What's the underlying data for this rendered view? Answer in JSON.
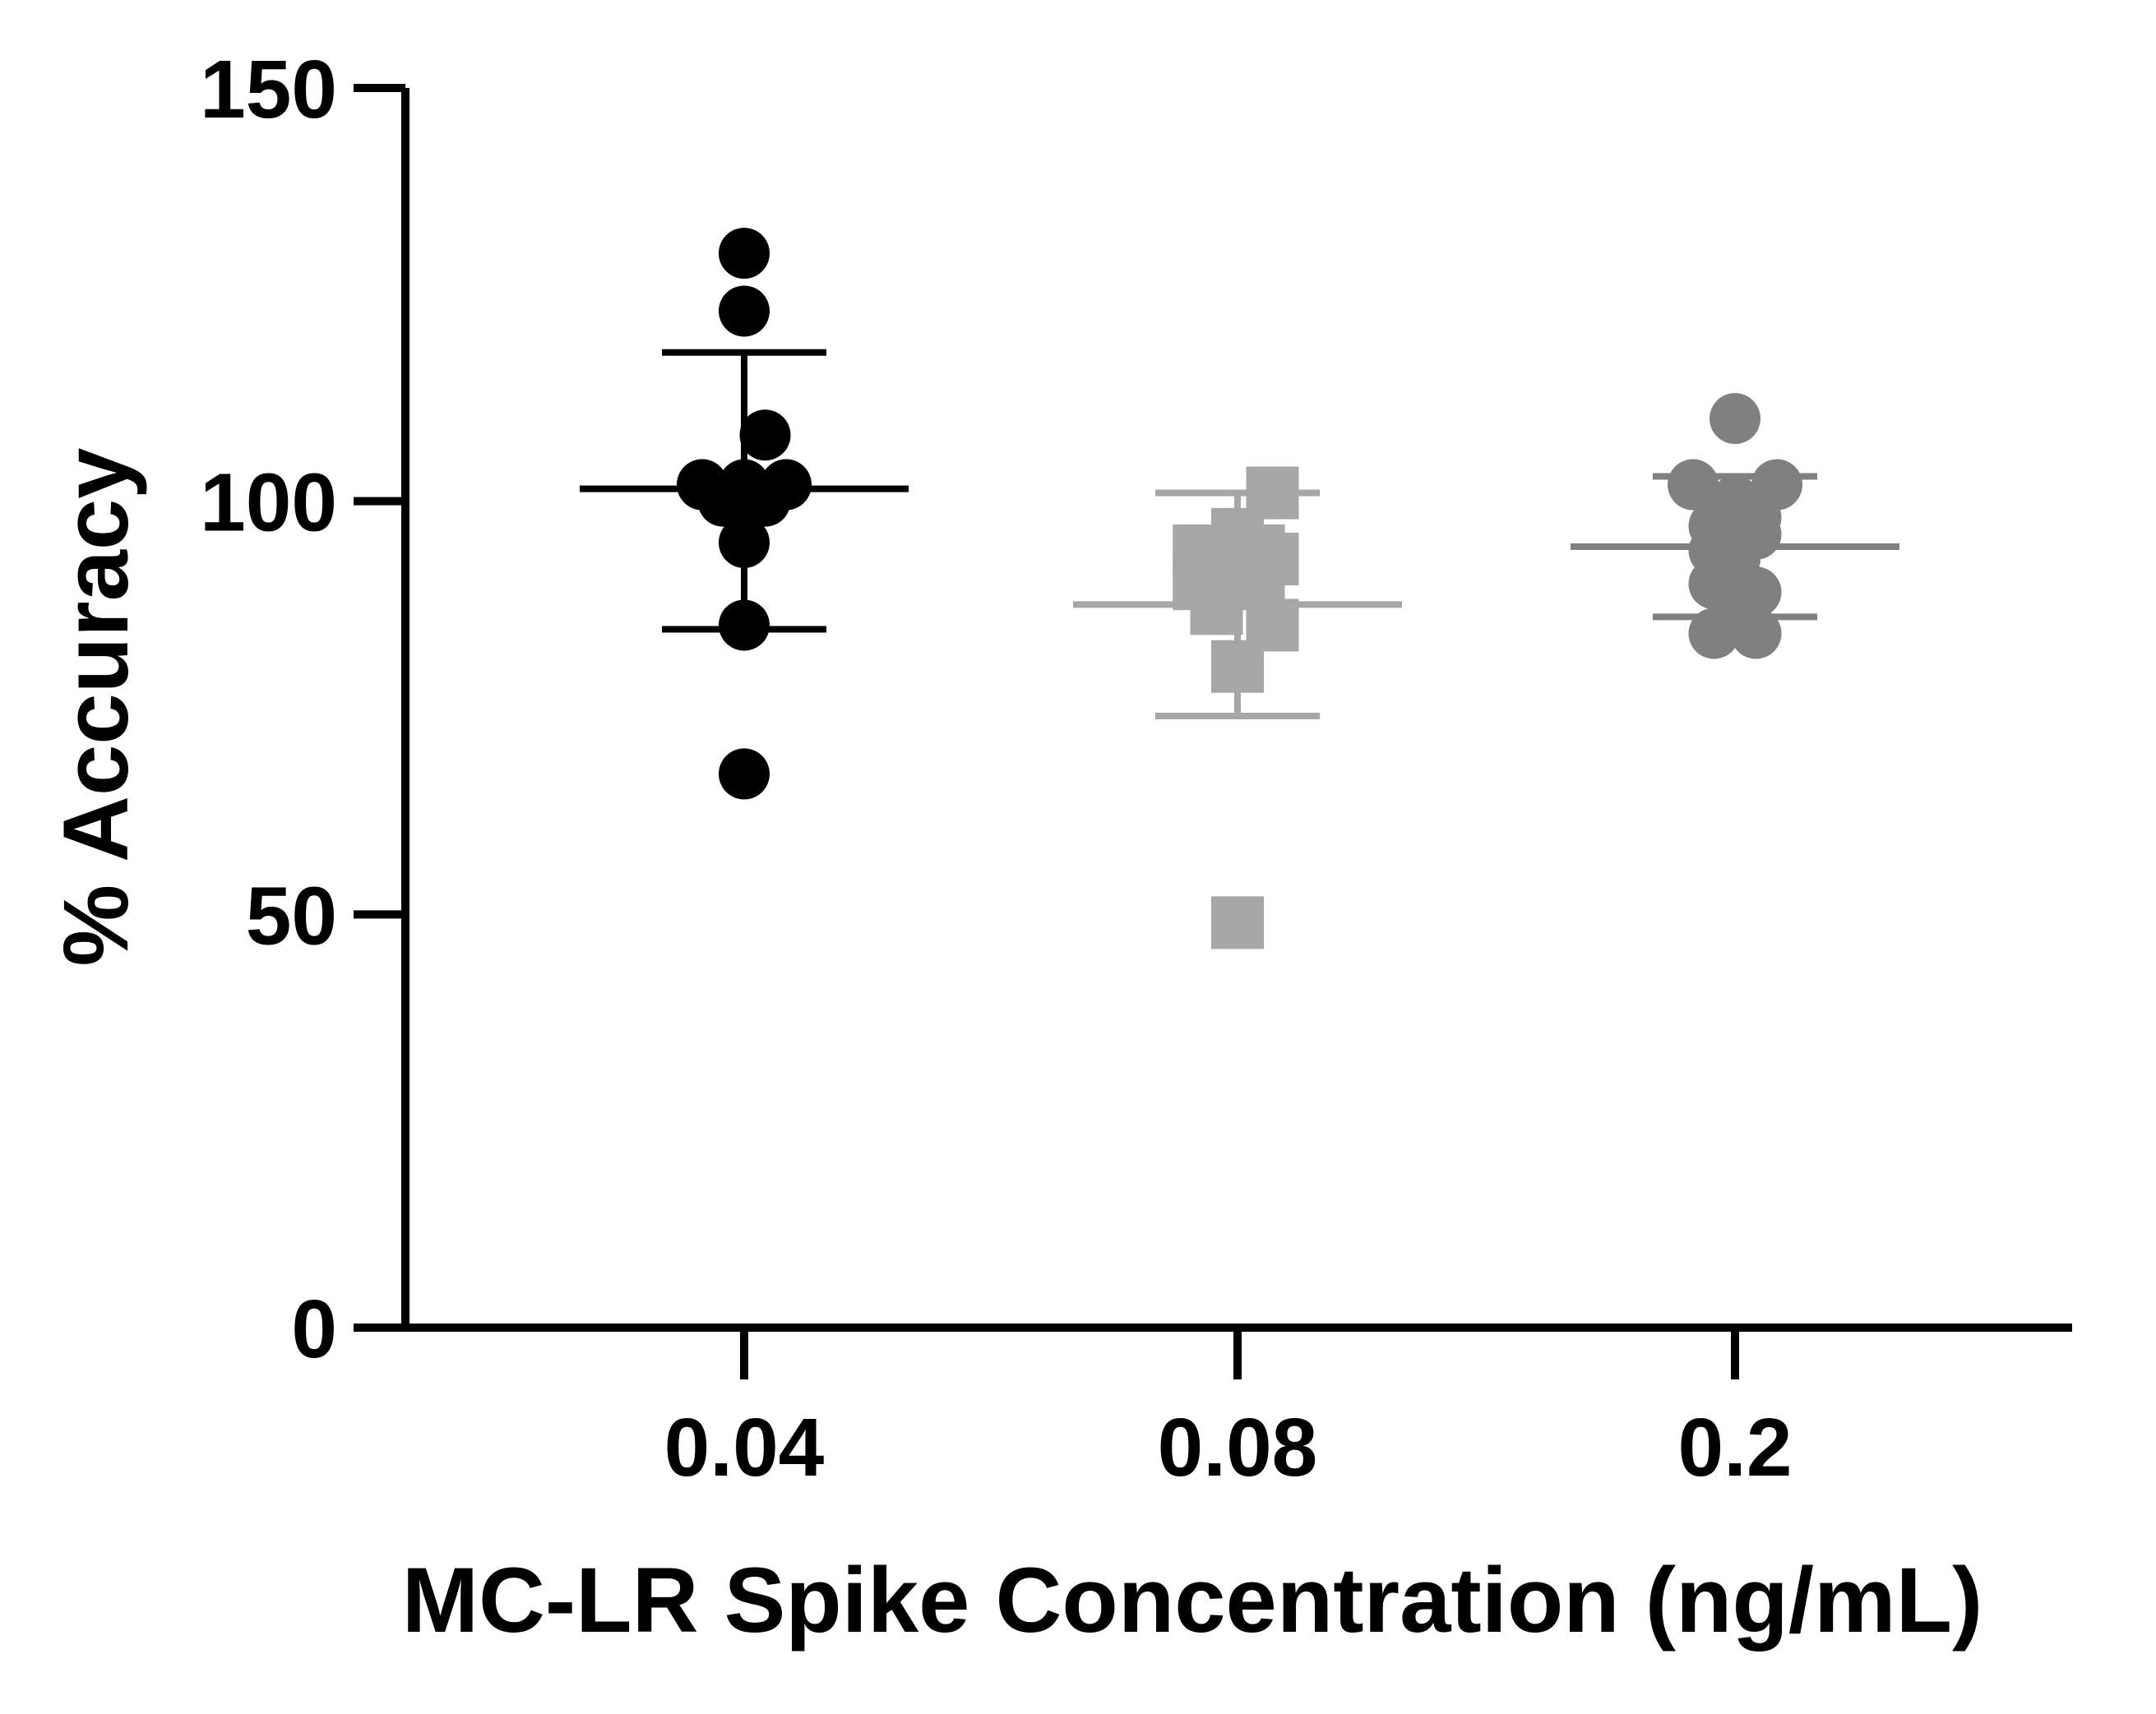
{
  "chart_data": {
    "type": "scatter",
    "title": "",
    "xlabel": "MC-LR Spike Concentration (ng/mL)",
    "ylabel": "% Accuracy",
    "ylim": [
      0,
      150
    ],
    "yticks": [
      0,
      50,
      100,
      150
    ],
    "categories": [
      "0.04",
      "0.08",
      "0.2"
    ],
    "series": [
      {
        "name": "0.04",
        "marker": "circle",
        "color": "#000000",
        "values": [
          130,
          123,
          108,
          102,
          102,
          100,
          102,
          100,
          95,
          85,
          67
        ],
        "offsets": [
          0,
          0,
          0.3,
          -0.6,
          0.6,
          -0.3,
          0,
          0.3,
          0,
          0,
          0
        ],
        "mean": 101.5,
        "sd_low": 84.5,
        "sd_high": 118
      },
      {
        "name": "0.08",
        "marker": "square",
        "color": "#a6a6a8",
        "values": [
          101,
          96,
          94,
          94,
          93,
          92,
          90,
          90,
          87,
          85,
          80,
          49
        ],
        "offsets": [
          0.5,
          0,
          0.3,
          -0.55,
          0.5,
          -0.3,
          -0.55,
          0.3,
          -0.3,
          0.5,
          0,
          0
        ],
        "mean": 87.5,
        "sd_low": 74,
        "sd_high": 101
      },
      {
        "name": "0.2",
        "marker": "circle",
        "color": "#808080",
        "values": [
          110,
          102,
          102,
          100,
          98,
          97,
          96,
          94,
          93,
          90,
          89,
          88,
          84,
          84
        ],
        "offsets": [
          0,
          -0.6,
          0.6,
          0,
          0.3,
          -0.3,
          0.3,
          -0.3,
          0,
          -0.3,
          0.3,
          0,
          -0.3,
          0.3
        ],
        "mean": 94.5,
        "sd_low": 86,
        "sd_high": 103
      }
    ]
  }
}
